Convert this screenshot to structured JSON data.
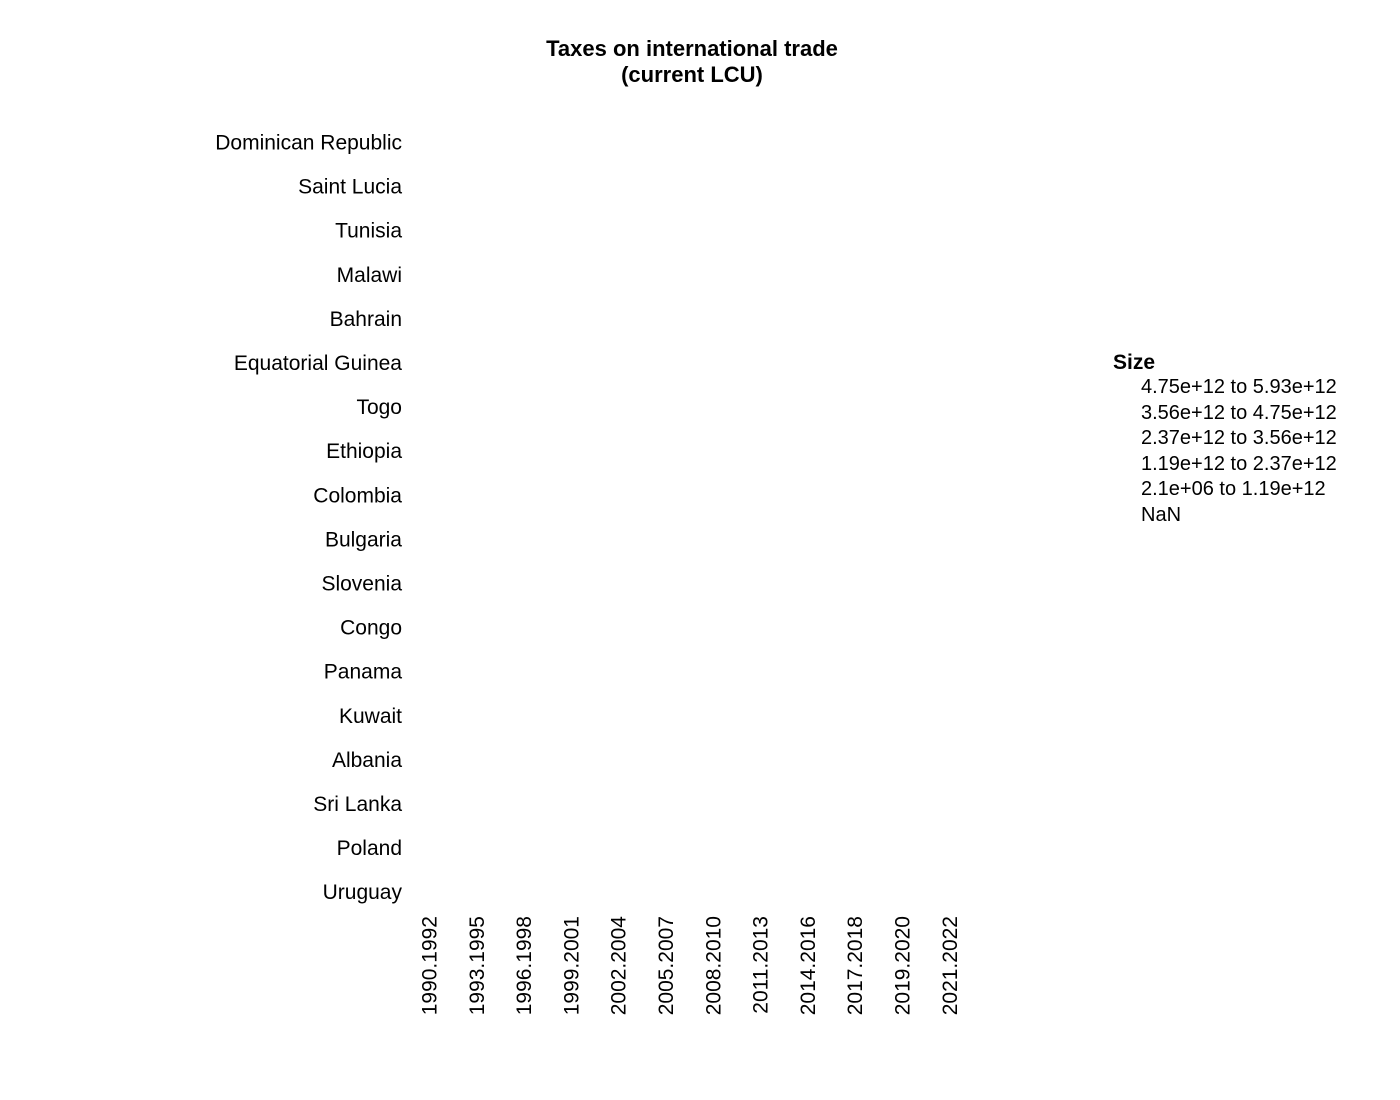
{
  "chart_data": {
    "type": "scatter",
    "title": "Taxes on international trade",
    "subtitle": "(current LCU)",
    "rows": [
      "Dominican Republic",
      "Saint Lucia",
      "Tunisia",
      "Malawi",
      "Bahrain",
      "Equatorial Guinea",
      "Togo",
      "Ethiopia",
      "Colombia",
      "Bulgaria",
      "Slovenia",
      "Congo",
      "Panama",
      "Kuwait",
      "Albania",
      "Sri Lanka",
      "Poland",
      "Uruguay"
    ],
    "columns": [
      "1990.1992",
      "1993.1995",
      "1996.1998",
      "1999.2001",
      "2002.2004",
      "2005.2007",
      "2008.2010",
      "2011.2013",
      "2014.2016",
      "2017.2018",
      "2019.2020",
      "2021.2022"
    ],
    "points": [],
    "legend": {
      "title": "Size",
      "items": [
        "4.75e+12 to 5.93e+12",
        "3.56e+12 to 4.75e+12",
        "2.37e+12 to 3.56e+12",
        "1.19e+12 to 2.37e+12",
        "2.1e+06 to 1.19e+12",
        "NaN"
      ],
      "placement": "right"
    },
    "grid": false
  }
}
